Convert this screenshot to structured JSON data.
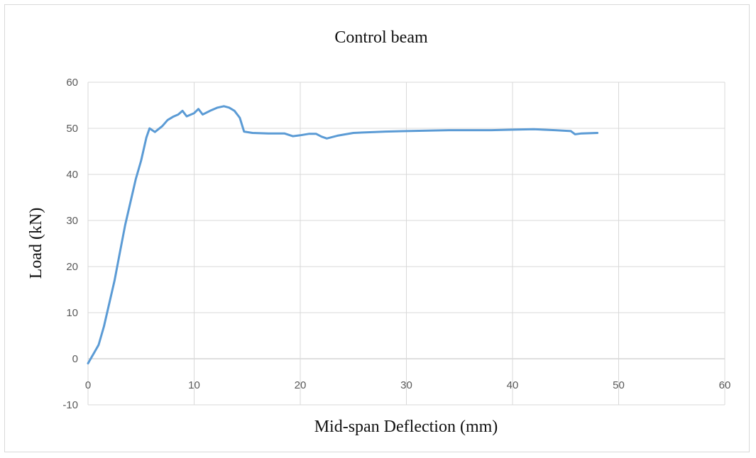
{
  "chart_data": {
    "type": "line",
    "title": "Control beam",
    "xlabel": "Mid-span Deflection  (mm)",
    "ylabel": "Load (kN)",
    "xlim": [
      0,
      60
    ],
    "ylim": [
      -10,
      60
    ],
    "x_ticks": [
      0,
      10,
      20,
      30,
      40,
      50,
      60
    ],
    "y_ticks": [
      -10,
      0,
      10,
      20,
      30,
      40,
      50,
      60
    ],
    "grid": true,
    "legend": "none",
    "series": [
      {
        "color": "#5b9bd5",
        "points": [
          [
            0,
            -1
          ],
          [
            0.5,
            1
          ],
          [
            1,
            3
          ],
          [
            1.5,
            7
          ],
          [
            2,
            12
          ],
          [
            2.5,
            17
          ],
          [
            3,
            23
          ],
          [
            3.5,
            29
          ],
          [
            4,
            34
          ],
          [
            4.5,
            39
          ],
          [
            5,
            43
          ],
          [
            5.5,
            48
          ],
          [
            5.8,
            50
          ],
          [
            6.3,
            49.2
          ],
          [
            7,
            50.5
          ],
          [
            7.5,
            51.8
          ],
          [
            8,
            52.5
          ],
          [
            8.5,
            53
          ],
          [
            8.9,
            53.8
          ],
          [
            9.3,
            52.6
          ],
          [
            10,
            53.3
          ],
          [
            10.4,
            54.2
          ],
          [
            10.8,
            53
          ],
          [
            11.5,
            53.8
          ],
          [
            12.2,
            54.5
          ],
          [
            12.8,
            54.8
          ],
          [
            13.3,
            54.5
          ],
          [
            13.8,
            53.8
          ],
          [
            14.3,
            52.3
          ],
          [
            14.7,
            49.3
          ],
          [
            15.5,
            49
          ],
          [
            17,
            48.9
          ],
          [
            18.5,
            48.9
          ],
          [
            19.3,
            48.3
          ],
          [
            20,
            48.5
          ],
          [
            20.8,
            48.8
          ],
          [
            21.5,
            48.8
          ],
          [
            22,
            48.2
          ],
          [
            22.5,
            47.8
          ],
          [
            23.5,
            48.4
          ],
          [
            25,
            49
          ],
          [
            27,
            49.2
          ],
          [
            28,
            49.3
          ],
          [
            30,
            49.4
          ],
          [
            32,
            49.5
          ],
          [
            34,
            49.6
          ],
          [
            36,
            49.6
          ],
          [
            38,
            49.6
          ],
          [
            40,
            49.7
          ],
          [
            42,
            49.8
          ],
          [
            44,
            49.6
          ],
          [
            45.5,
            49.4
          ],
          [
            45.9,
            48.7
          ],
          [
            46.5,
            48.9
          ],
          [
            48,
            49
          ]
        ]
      }
    ]
  }
}
